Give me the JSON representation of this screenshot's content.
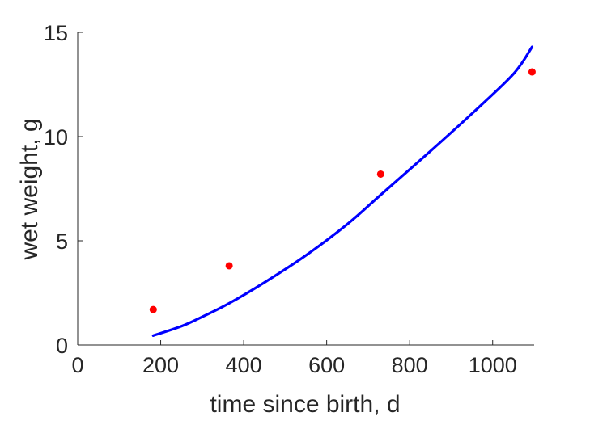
{
  "chart_data": {
    "type": "scatter",
    "xlabel": "time since birth, d",
    "ylabel": "wet weight, g",
    "xlim": [
      0,
      1100
    ],
    "ylim": [
      0,
      15
    ],
    "xticks": [
      0,
      200,
      400,
      600,
      800,
      1000
    ],
    "yticks": [
      0,
      5,
      10,
      15
    ],
    "grid": false,
    "legend": "none",
    "series": [
      {
        "kind": "points",
        "color": "#ff0000",
        "x": [
          182,
          365,
          730,
          1095
        ],
        "y": [
          1.7,
          3.8,
          8.2,
          13.1
        ]
      },
      {
        "kind": "line",
        "color": "#0000ff",
        "x": [
          182,
          250,
          300,
          365,
          450,
          550,
          650,
          730,
          850,
          950,
          1050,
          1095
        ],
        "y": [
          0.45,
          0.9,
          1.35,
          2.0,
          3.0,
          4.3,
          5.8,
          7.2,
          9.3,
          11.1,
          13.0,
          14.3
        ]
      }
    ]
  }
}
